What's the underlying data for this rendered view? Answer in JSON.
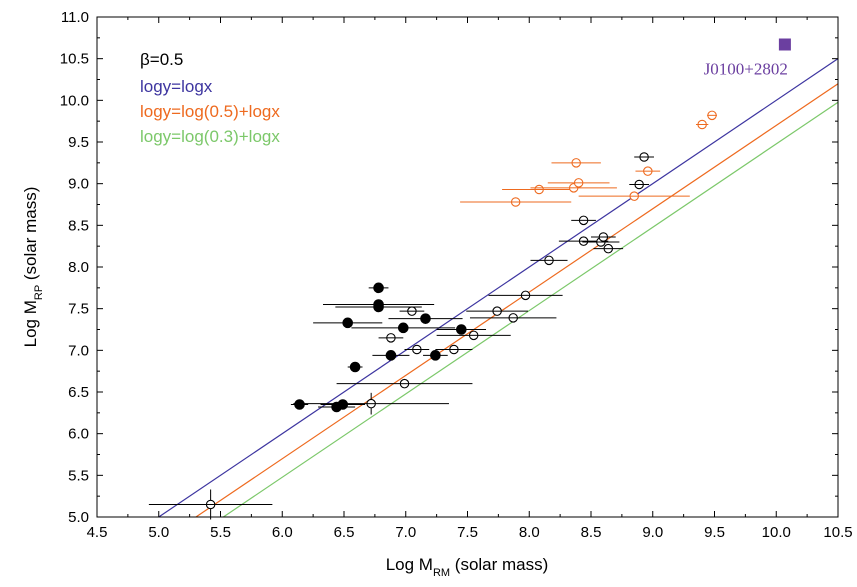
{
  "chart_data": {
    "type": "scatter",
    "xlabel": "Log M",
    "xlabel_sub": "RM",
    "xlabel_unit": " (solar mass)",
    "ylabel": "Log M",
    "ylabel_sub": "RP",
    "ylabel_unit": " (solar mass)",
    "xlim": [
      4.5,
      10.5
    ],
    "ylim": [
      5.0,
      11.0
    ],
    "x_ticks": [
      "4.5",
      "5.0",
      "5.5",
      "6.0",
      "6.5",
      "7.0",
      "7.5",
      "8.0",
      "8.5",
      "9.0",
      "9.5",
      "10.0",
      "10.5"
    ],
    "y_ticks": [
      "5.0",
      "5.5",
      "6.0",
      "6.5",
      "7.0",
      "7.5",
      "8.0",
      "8.5",
      "9.0",
      "9.5",
      "10.0",
      "10.5",
      "11.0"
    ],
    "legend": {
      "title": "β=0.5",
      "placement": "top-left",
      "entries": [
        {
          "label": "logy=logx",
          "color": "#3d35a0"
        },
        {
          "label": "logy=log(0.5)+logx",
          "color": "#ee6a1f"
        },
        {
          "label": "logy=log(0.3)+logx",
          "color": "#7cc86a"
        }
      ]
    },
    "lines": [
      {
        "label": "logy=logx",
        "offset": 0.0,
        "color": "#3d35a0"
      },
      {
        "label": "logy=log(0.5)+logx",
        "offset": -0.301,
        "color": "#ee6a1f"
      },
      {
        "label": "logy=log(0.3)+logx",
        "offset": -0.523,
        "color": "#7cc86a"
      }
    ],
    "series": [
      {
        "style": "filled-black",
        "color": "#000000",
        "points": [
          {
            "x": 6.78,
            "y": 7.75,
            "xerr": 0.08
          },
          {
            "x": 6.78,
            "y": 7.55,
            "xerr": 0.45
          },
          {
            "x": 6.78,
            "y": 7.52,
            "xerr": 0.35
          },
          {
            "x": 6.53,
            "y": 7.33,
            "xerr": 0.28
          },
          {
            "x": 7.16,
            "y": 7.38,
            "xerr": 0.3
          },
          {
            "x": 6.98,
            "y": 7.27,
            "xerr": 0.42
          },
          {
            "x": 7.45,
            "y": 7.25,
            "xerr": 0.2
          },
          {
            "x": 6.88,
            "y": 6.94,
            "xerr": 0.15
          },
          {
            "x": 7.24,
            "y": 6.94,
            "xerr": 0.1
          },
          {
            "x": 6.59,
            "y": 6.8,
            "xerr": 0.06
          },
          {
            "x": 6.14,
            "y": 6.35,
            "xerr": 0.07
          },
          {
            "x": 6.44,
            "y": 6.32,
            "xerr": 0.15
          },
          {
            "x": 6.49,
            "y": 6.35,
            "xerr": 0.18
          }
        ]
      },
      {
        "style": "open-black",
        "color": "#000000",
        "points": [
          {
            "x": 5.42,
            "y": 5.15,
            "xerr": 0.5,
            "yerr": 0.18
          },
          {
            "x": 6.72,
            "y": 6.36,
            "xerr": 0.63,
            "yerr": 0.13
          },
          {
            "x": 6.99,
            "y": 6.6,
            "xerr": 0.55
          },
          {
            "x": 7.09,
            "y": 7.01,
            "xerr": 0.1
          },
          {
            "x": 7.39,
            "y": 7.01,
            "xerr": 0.15
          },
          {
            "x": 7.55,
            "y": 7.18,
            "xerr": 0.3
          },
          {
            "x": 6.88,
            "y": 7.15,
            "xerr": 0.1
          },
          {
            "x": 7.05,
            "y": 7.47,
            "xerr": 0.1
          },
          {
            "x": 7.74,
            "y": 7.47,
            "xerr": 0.25
          },
          {
            "x": 7.87,
            "y": 7.39,
            "xerr": 0.35
          },
          {
            "x": 7.97,
            "y": 7.66,
            "xerr": 0.3
          },
          {
            "x": 8.16,
            "y": 8.08,
            "xerr": 0.15
          },
          {
            "x": 8.44,
            "y": 8.31,
            "xerr": 0.2
          },
          {
            "x": 8.44,
            "y": 8.56,
            "xerr": 0.1
          },
          {
            "x": 8.58,
            "y": 8.3,
            "xerr": 0.15
          },
          {
            "x": 8.6,
            "y": 8.36,
            "xerr": 0.1
          },
          {
            "x": 8.64,
            "y": 8.22,
            "xerr": 0.12
          },
          {
            "x": 8.89,
            "y": 8.99,
            "xerr": 0.08
          },
          {
            "x": 8.93,
            "y": 9.32,
            "xerr": 0.08
          }
        ]
      },
      {
        "style": "open-orange",
        "color": "#ee6a1f",
        "points": [
          {
            "x": 7.89,
            "y": 8.78,
            "xerr": 0.45
          },
          {
            "x": 8.08,
            "y": 8.93,
            "xerr": 0.3
          },
          {
            "x": 8.36,
            "y": 8.95,
            "xerr": 0.35
          },
          {
            "x": 8.4,
            "y": 9.01,
            "xerr": 0.25
          },
          {
            "x": 8.38,
            "y": 9.25,
            "xerr": 0.2
          },
          {
            "x": 8.85,
            "y": 8.85,
            "xerr": 0.45
          },
          {
            "x": 8.96,
            "y": 9.15,
            "xerr": 0.1
          },
          {
            "x": 9.4,
            "y": 9.71,
            "xerr": 0.05
          },
          {
            "x": 9.48,
            "y": 9.82,
            "xerr": 0.04
          }
        ]
      },
      {
        "style": "filled-square-purple",
        "color": "#6b3fa0",
        "points": [
          {
            "x": 10.07,
            "y": 10.67
          }
        ]
      }
    ],
    "annotations": [
      {
        "text": "J0100+2802",
        "x": 10.07,
        "y": 10.67,
        "color": "#6b3fa0"
      }
    ]
  }
}
